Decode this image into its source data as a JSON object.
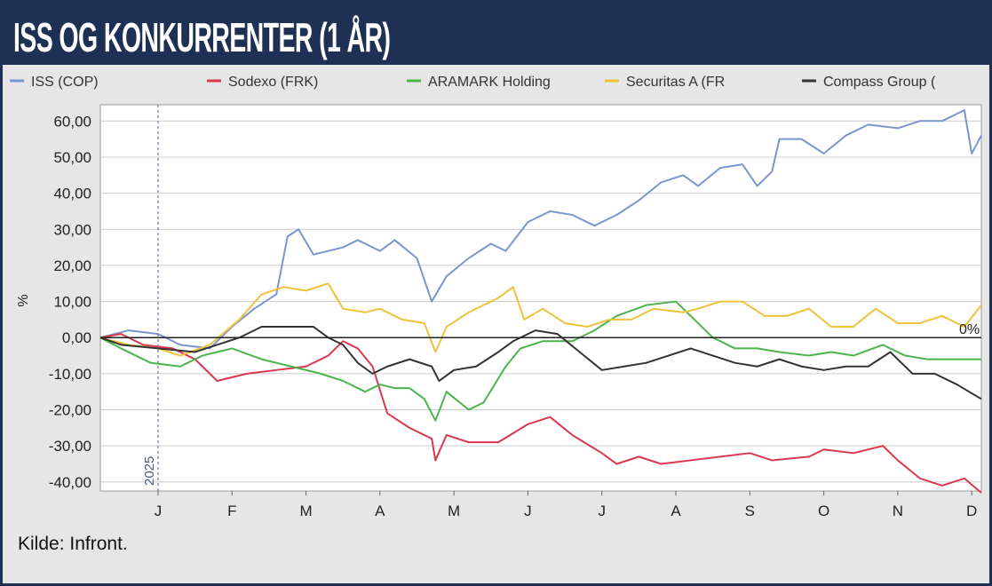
{
  "header": {
    "title": "ISS OG KONKURRENTER (1 ÅR)"
  },
  "source": "Kilde:  Infront.",
  "chart_data": {
    "type": "line",
    "title": "ISS OG KONKURRENTER (1 ÅR)",
    "xlabel": "",
    "ylabel": "%",
    "ylim": [
      -42.5,
      64.5
    ],
    "xlim": [
      0.22,
      12.13
    ],
    "y_ticks": [
      "60,00",
      "50,00",
      "40,00",
      "30,00",
      "20,00",
      "10,00",
      "0,00",
      "-10,00",
      "-20,00",
      "-30,00",
      "-40,00"
    ],
    "y_tick_values": [
      60,
      50,
      40,
      30,
      20,
      10,
      0,
      -10,
      -20,
      -30,
      -40
    ],
    "x_ticks": [
      "J",
      "F",
      "M",
      "A",
      "M",
      "J",
      "J",
      "A",
      "S",
      "O",
      "N",
      "D"
    ],
    "x_tick_values": [
      1,
      2,
      3,
      4,
      5,
      6,
      7,
      8,
      9,
      10,
      11,
      12
    ],
    "year_marker": {
      "label": "2025",
      "x": 1
    },
    "zero_label": "0%",
    "legend_position": "top",
    "grid": true,
    "series": [
      {
        "name": "ISS (COP)",
        "color": "#7b95d0",
        "points": [
          [
            0.22,
            0
          ],
          [
            0.6,
            2
          ],
          [
            1,
            1
          ],
          [
            1.3,
            -2
          ],
          [
            1.7,
            -3
          ],
          [
            2,
            3
          ],
          [
            2.3,
            8
          ],
          [
            2.6,
            12
          ],
          [
            2.75,
            28
          ],
          [
            2.9,
            30
          ],
          [
            3.1,
            23
          ],
          [
            3.5,
            25
          ],
          [
            3.7,
            27
          ],
          [
            4,
            24
          ],
          [
            4.2,
            27
          ],
          [
            4.5,
            22
          ],
          [
            4.7,
            10
          ],
          [
            4.9,
            17
          ],
          [
            5.2,
            22
          ],
          [
            5.5,
            26
          ],
          [
            5.7,
            24
          ],
          [
            6,
            32
          ],
          [
            6.3,
            35
          ],
          [
            6.6,
            34
          ],
          [
            6.9,
            31
          ],
          [
            7.2,
            34
          ],
          [
            7.5,
            38
          ],
          [
            7.8,
            43
          ],
          [
            8.1,
            45
          ],
          [
            8.3,
            42
          ],
          [
            8.6,
            47
          ],
          [
            8.9,
            48
          ],
          [
            9.1,
            42
          ],
          [
            9.3,
            46
          ],
          [
            9.4,
            55
          ],
          [
            9.7,
            55
          ],
          [
            10,
            51
          ],
          [
            10.3,
            56
          ],
          [
            10.6,
            59
          ],
          [
            11,
            58
          ],
          [
            11.3,
            60
          ],
          [
            11.6,
            60
          ],
          [
            11.9,
            63
          ],
          [
            12,
            51
          ],
          [
            12.13,
            56
          ]
        ]
      },
      {
        "name": "Sodexo (FRK)",
        "color": "#d9384f",
        "points": [
          [
            0.22,
            0
          ],
          [
            0.5,
            1
          ],
          [
            0.8,
            -2
          ],
          [
            1.2,
            -3
          ],
          [
            1.5,
            -6
          ],
          [
            1.8,
            -12
          ],
          [
            2.2,
            -10
          ],
          [
            2.6,
            -9
          ],
          [
            3,
            -8
          ],
          [
            3.3,
            -5
          ],
          [
            3.5,
            -1
          ],
          [
            3.7,
            -3
          ],
          [
            3.9,
            -8
          ],
          [
            4.1,
            -21
          ],
          [
            4.4,
            -25
          ],
          [
            4.7,
            -28
          ],
          [
            4.75,
            -34
          ],
          [
            4.9,
            -27
          ],
          [
            5.2,
            -29
          ],
          [
            5.6,
            -29
          ],
          [
            6,
            -24
          ],
          [
            6.3,
            -22
          ],
          [
            6.6,
            -27
          ],
          [
            7,
            -32
          ],
          [
            7.2,
            -35
          ],
          [
            7.5,
            -33
          ],
          [
            7.8,
            -35
          ],
          [
            8.2,
            -34
          ],
          [
            8.6,
            -33
          ],
          [
            9,
            -32
          ],
          [
            9.3,
            -34
          ],
          [
            9.8,
            -33
          ],
          [
            10,
            -31
          ],
          [
            10.4,
            -32
          ],
          [
            10.8,
            -30
          ],
          [
            11,
            -34
          ],
          [
            11.3,
            -39
          ],
          [
            11.6,
            -41
          ],
          [
            11.9,
            -39
          ],
          [
            12.13,
            -43
          ]
        ]
      },
      {
        "name": "ARAMARK Holding",
        "color": "#4cb44c",
        "points": [
          [
            0.22,
            0
          ],
          [
            0.5,
            -3
          ],
          [
            0.9,
            -7
          ],
          [
            1.3,
            -8
          ],
          [
            1.6,
            -5
          ],
          [
            2,
            -3
          ],
          [
            2.4,
            -6
          ],
          [
            2.8,
            -8
          ],
          [
            3.2,
            -10
          ],
          [
            3.5,
            -12
          ],
          [
            3.8,
            -15
          ],
          [
            4,
            -13
          ],
          [
            4.2,
            -14
          ],
          [
            4.4,
            -14
          ],
          [
            4.6,
            -17
          ],
          [
            4.75,
            -23
          ],
          [
            4.9,
            -15
          ],
          [
            5.2,
            -20
          ],
          [
            5.4,
            -18
          ],
          [
            5.7,
            -8
          ],
          [
            5.9,
            -3
          ],
          [
            6.2,
            -1
          ],
          [
            6.6,
            -1
          ],
          [
            6.9,
            2
          ],
          [
            7.2,
            6
          ],
          [
            7.6,
            9
          ],
          [
            8,
            10
          ],
          [
            8.3,
            4
          ],
          [
            8.5,
            0
          ],
          [
            8.8,
            -3
          ],
          [
            9.1,
            -3
          ],
          [
            9.4,
            -4
          ],
          [
            9.8,
            -5
          ],
          [
            10.1,
            -4
          ],
          [
            10.4,
            -5
          ],
          [
            10.8,
            -2
          ],
          [
            11.1,
            -5
          ],
          [
            11.4,
            -6
          ],
          [
            11.7,
            -6
          ],
          [
            12.13,
            -6
          ]
        ]
      },
      {
        "name": "Securitas A (FR",
        "color": "#f0c23a",
        "points": [
          [
            0.22,
            0
          ],
          [
            0.6,
            -2
          ],
          [
            1,
            -3
          ],
          [
            1.3,
            -5
          ],
          [
            1.7,
            -2
          ],
          [
            2.1,
            5
          ],
          [
            2.4,
            12
          ],
          [
            2.7,
            14
          ],
          [
            3,
            13
          ],
          [
            3.3,
            15
          ],
          [
            3.5,
            8
          ],
          [
            3.8,
            7
          ],
          [
            4,
            8
          ],
          [
            4.3,
            5
          ],
          [
            4.6,
            4
          ],
          [
            4.75,
            -4
          ],
          [
            4.9,
            3
          ],
          [
            5.2,
            7
          ],
          [
            5.6,
            11
          ],
          [
            5.8,
            14
          ],
          [
            5.95,
            5
          ],
          [
            6.2,
            8
          ],
          [
            6.5,
            4
          ],
          [
            6.8,
            3
          ],
          [
            7.1,
            5
          ],
          [
            7.4,
            5
          ],
          [
            7.7,
            8
          ],
          [
            8.1,
            7
          ],
          [
            8.3,
            8
          ],
          [
            8.6,
            10
          ],
          [
            8.9,
            10
          ],
          [
            9.2,
            6
          ],
          [
            9.5,
            6
          ],
          [
            9.8,
            8
          ],
          [
            10.1,
            3
          ],
          [
            10.4,
            3
          ],
          [
            10.7,
            8
          ],
          [
            11,
            4
          ],
          [
            11.3,
            4
          ],
          [
            11.6,
            6
          ],
          [
            11.9,
            3
          ],
          [
            12.13,
            9
          ]
        ]
      },
      {
        "name": "Compass Group (",
        "color": "#333333",
        "points": [
          [
            0.22,
            0
          ],
          [
            0.5,
            -2
          ],
          [
            1,
            -3
          ],
          [
            1.5,
            -4
          ],
          [
            1.8,
            -2
          ],
          [
            2.1,
            0
          ],
          [
            2.4,
            3
          ],
          [
            2.8,
            3
          ],
          [
            3.1,
            3
          ],
          [
            3.3,
            0
          ],
          [
            3.5,
            -2
          ],
          [
            3.7,
            -7
          ],
          [
            3.9,
            -10
          ],
          [
            4.1,
            -8
          ],
          [
            4.4,
            -6
          ],
          [
            4.7,
            -8
          ],
          [
            4.8,
            -12
          ],
          [
            5,
            -9
          ],
          [
            5.3,
            -8
          ],
          [
            5.6,
            -4
          ],
          [
            5.8,
            -1
          ],
          [
            6.1,
            2
          ],
          [
            6.4,
            1
          ],
          [
            6.7,
            -4
          ],
          [
            7,
            -9
          ],
          [
            7.3,
            -8
          ],
          [
            7.6,
            -7
          ],
          [
            7.9,
            -5
          ],
          [
            8.2,
            -3
          ],
          [
            8.5,
            -5
          ],
          [
            8.8,
            -7
          ],
          [
            9.1,
            -8
          ],
          [
            9.4,
            -6
          ],
          [
            9.7,
            -8
          ],
          [
            10,
            -9
          ],
          [
            10.3,
            -8
          ],
          [
            10.6,
            -8
          ],
          [
            10.9,
            -4
          ],
          [
            11.2,
            -10
          ],
          [
            11.5,
            -10
          ],
          [
            11.8,
            -13
          ],
          [
            12.13,
            -17
          ]
        ]
      }
    ]
  }
}
